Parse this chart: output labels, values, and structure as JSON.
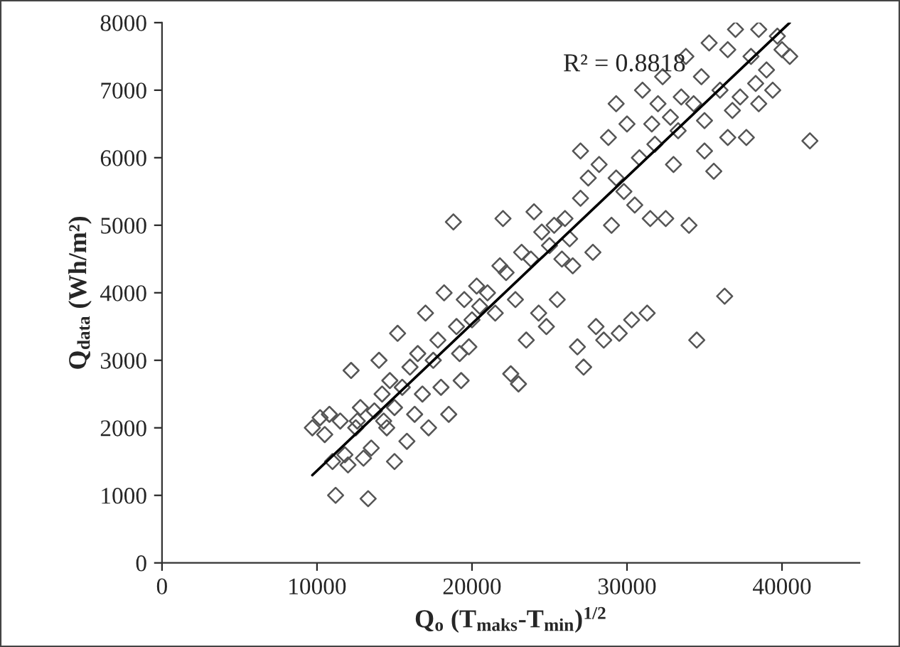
{
  "chart_data": {
    "type": "scatter",
    "xlabel": "Q$_{o}$ (T$_{maks}$-T$_{min}$)$^{1/2}$",
    "ylabel": "Q$_{data}$ (Wh/m²)",
    "annotations": [
      "R² = 0.8818"
    ],
    "xlim": [
      0,
      45000
    ],
    "xticks": [
      0,
      10000,
      20000,
      30000,
      40000
    ],
    "ylim": [
      0,
      8000
    ],
    "yticks": [
      0,
      1000,
      2000,
      3000,
      4000,
      5000,
      6000,
      7000,
      8000
    ],
    "grid": false,
    "legend": false,
    "series": [
      {
        "color": "#555555",
        "marker": "diamond",
        "x": [
          9700,
          10200,
          10500,
          10800,
          11000,
          11200,
          11500,
          11800,
          12000,
          12200,
          12500,
          12800,
          13000,
          13300,
          13500,
          13700,
          14000,
          14200,
          14500,
          14700,
          15000,
          15200,
          15000,
          15500,
          15800,
          16000,
          16300,
          16500,
          16800,
          17000,
          17200,
          17500,
          17800,
          18000,
          18200,
          18500,
          18800,
          19000,
          19300,
          19500,
          19800,
          20000,
          20300,
          20500,
          21000,
          21500,
          22000,
          22200,
          22500,
          22800,
          23000,
          23200,
          23500,
          23800,
          24000,
          24300,
          24500,
          24800,
          25000,
          25300,
          25500,
          25800,
          26000,
          26300,
          26800,
          27000,
          27200,
          27000,
          27500,
          27800,
          28000,
          28200,
          28500,
          28800,
          29000,
          29300,
          29500,
          29800,
          30000,
          30300,
          30500,
          30800,
          31000,
          31300,
          31500,
          31800,
          32000,
          32300,
          32500,
          32800,
          33000,
          33300,
          33800,
          34000,
          34300,
          34500,
          34800,
          35000,
          35300,
          35600,
          36000,
          36300,
          36500,
          36800,
          37000,
          37300,
          37700,
          38000,
          38300,
          38500,
          39000,
          39400,
          39700,
          40000,
          40500,
          41800,
          35000,
          33500,
          26500,
          21800,
          19200,
          14300,
          12600,
          29300,
          31600,
          36500,
          38500
        ],
        "values": [
          2000,
          2150,
          1900,
          2200,
          1500,
          1000,
          2100,
          1600,
          1450,
          2850,
          2000,
          2300,
          1550,
          950,
          1700,
          2250,
          3000,
          2500,
          2000,
          2700,
          1500,
          3400,
          2300,
          2600,
          1800,
          2900,
          2200,
          3100,
          2500,
          3700,
          2000,
          3000,
          3300,
          2600,
          4000,
          2200,
          5050,
          3500,
          2700,
          3900,
          3200,
          3600,
          4100,
          3800,
          4000,
          3700,
          5100,
          4300,
          2800,
          3900,
          2650,
          4600,
          3300,
          4500,
          5200,
          3700,
          4900,
          3500,
          4700,
          5000,
          3900,
          4500,
          5100,
          4800,
          3200,
          5400,
          2900,
          6100,
          5700,
          4600,
          3500,
          5900,
          3300,
          6300,
          5000,
          6800,
          3400,
          5500,
          6500,
          3600,
          5300,
          6000,
          7000,
          3700,
          5100,
          6200,
          6800,
          7200,
          5100,
          6600,
          5900,
          6400,
          7500,
          5000,
          6800,
          3300,
          7200,
          6100,
          7700,
          5800,
          7000,
          3950,
          7600,
          6700,
          7900,
          6900,
          6300,
          7500,
          7100,
          7900,
          7300,
          7000,
          7800,
          7600,
          7500,
          6250,
          6550,
          6900,
          4400,
          4400,
          3100,
          2100,
          2100,
          5700,
          6500,
          6300,
          6800
        ]
      },
      {
        "type": "line",
        "marker": "none",
        "color": "#000000",
        "x": [
          9700,
          40500
        ],
        "values": [
          1300,
          8000
        ]
      }
    ]
  }
}
